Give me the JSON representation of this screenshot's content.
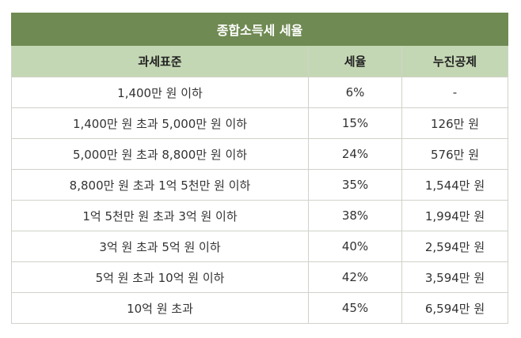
{
  "table": {
    "title": "종합소득세 세율",
    "headers": {
      "bracket": "과세표준",
      "rate": "세율",
      "deduction": "누진공제"
    },
    "rows": [
      {
        "bracket": "1,400만 원 이하",
        "rate": "6%",
        "deduction": "-"
      },
      {
        "bracket": "1,400만 원 초과 5,000만 원 이하",
        "rate": "15%",
        "deduction": "126만 원"
      },
      {
        "bracket": "5,000만 원 초과 8,800만 원 이하",
        "rate": "24%",
        "deduction": "576만 원"
      },
      {
        "bracket": "8,800만 원 초과 1억 5천만 원 이하",
        "rate": "35%",
        "deduction": "1,544만 원"
      },
      {
        "bracket": "1억 5천만 원 초과 3억 원 이하",
        "rate": "38%",
        "deduction": "1,994만 원"
      },
      {
        "bracket": "3억 원 초과 5억 원 이하",
        "rate": "40%",
        "deduction": "2,594만 원"
      },
      {
        "bracket": "5억 원 초과 10억 원 이하",
        "rate": "42%",
        "deduction": "3,594만 원"
      },
      {
        "bracket": "10억 원 초과",
        "rate": "45%",
        "deduction": "6,594만 원"
      }
    ]
  },
  "colors": {
    "title_bg": "#6f8a52",
    "header_bg": "#c4d7b4",
    "border": "#cfd3c9"
  }
}
